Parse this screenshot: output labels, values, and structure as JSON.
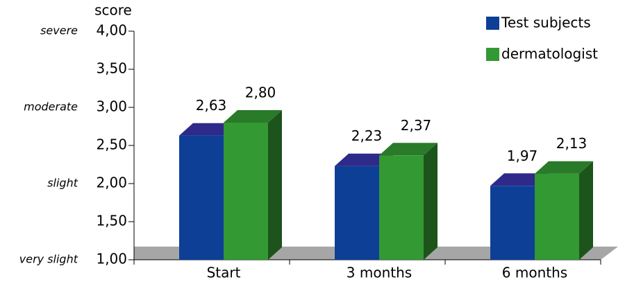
{
  "chart_data": {
    "type": "bar3d",
    "y_label": "score",
    "categories": [
      "Start",
      "3 months",
      "6 months"
    ],
    "series": [
      {
        "name": "Test subjects",
        "color": "#0d3f96",
        "values": [
          2.63,
          2.23,
          1.97
        ],
        "value_labels": [
          "2,63",
          "2,23",
          "1,97"
        ]
      },
      {
        "name": "dermatologist",
        "color": "#339933",
        "values": [
          2.8,
          2.37,
          2.13
        ],
        "value_labels": [
          "2,80",
          "2,37",
          "2,13"
        ]
      }
    ],
    "ylim": [
      1,
      4
    ],
    "yticks": [
      {
        "value": 1,
        "label": "1,00"
      },
      {
        "value": 1.5,
        "label": "1,50"
      },
      {
        "value": 2,
        "label": "2,00"
      },
      {
        "value": 2.5,
        "label": "2,50"
      },
      {
        "value": 3,
        "label": "3,00"
      },
      {
        "value": 3.5,
        "label": "3,50"
      },
      {
        "value": 4,
        "label": "4,00"
      }
    ],
    "severity_labels": [
      {
        "value": 4,
        "label": "severe"
      },
      {
        "value": 3,
        "label": "moderate"
      },
      {
        "value": 2,
        "label": "slight"
      },
      {
        "value": 1,
        "label": "very slight"
      }
    ],
    "legend": "top-right"
  }
}
